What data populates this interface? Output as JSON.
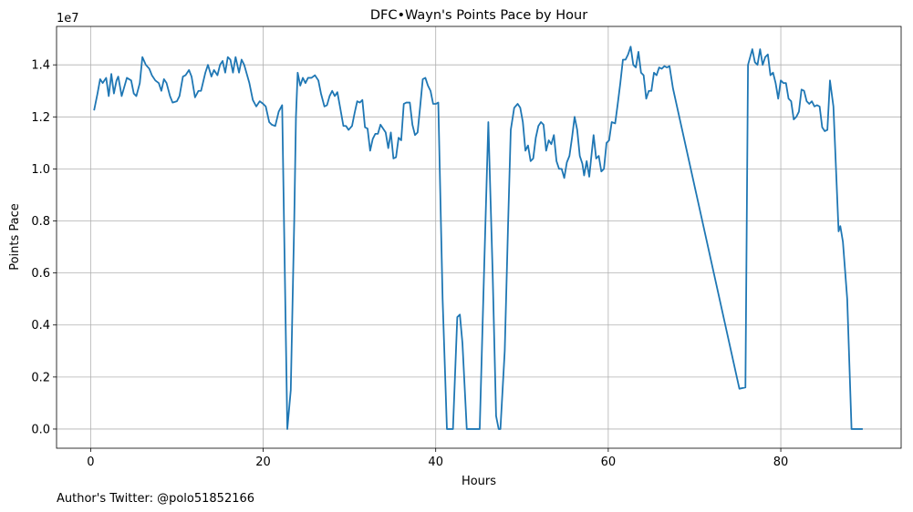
{
  "chart_data": {
    "type": "line",
    "title": "DFC•Wayn's Points Pace by Hour",
    "xlabel": "Hours",
    "ylabel": "Points Pace",
    "y_offset_label": "1e7",
    "footer": "Author's Twitter: @polo51852166",
    "color": "#1f77b4",
    "grid": true,
    "xlim": [
      -3.95,
      93.95
    ],
    "ylim": [
      -0.0737,
      1.5477
    ],
    "xticks": [
      0,
      20,
      40,
      60,
      80
    ],
    "yticks": [
      {
        "value": 0,
        "label": "0.0"
      },
      0.2,
      0.4,
      0.6,
      0.8,
      {
        "value": 1,
        "label": "1.0"
      },
      1.2,
      1.4
    ],
    "x": [
      0.4,
      0.8,
      1.1,
      1.4,
      1.8,
      2.1,
      2.4,
      2.7,
      3.0,
      3.2,
      3.6,
      4.2,
      4.7,
      5.0,
      5.3,
      5.7,
      6.0,
      6.4,
      6.8,
      7.1,
      7.5,
      7.9,
      8.2,
      8.5,
      8.8,
      9.2,
      9.5,
      10.0,
      10.3,
      10.7,
      11.0,
      11.4,
      11.7,
      12.1,
      12.5,
      12.8,
      13.3,
      13.6,
      14.0,
      14.3,
      14.7,
      15.0,
      15.3,
      15.6,
      15.9,
      16.2,
      16.5,
      16.8,
      17.2,
      17.5,
      17.8,
      18.1,
      18.4,
      18.8,
      19.2,
      19.6,
      20.0,
      20.3,
      20.7,
      21.0,
      21.4,
      21.8,
      22.2,
      22.8,
      23.2,
      23.6,
      23.8,
      24.0,
      24.3,
      24.6,
      24.9,
      25.2,
      25.6,
      26.0,
      26.4,
      26.7,
      27.1,
      27.4,
      27.7,
      28.0,
      28.3,
      28.6,
      28.9,
      29.3,
      29.6,
      29.9,
      30.3,
      30.6,
      30.9,
      31.2,
      31.5,
      31.8,
      32.1,
      32.4,
      32.7,
      33.0,
      33.3,
      33.6,
      33.9,
      34.2,
      34.5,
      34.8,
      35.1,
      35.4,
      35.7,
      36.0,
      36.3,
      36.6,
      37.0,
      37.3,
      37.6,
      37.9,
      38.2,
      38.5,
      38.8,
      39.1,
      39.4,
      39.7,
      40.0,
      40.3,
      40.8,
      41.3,
      42.0,
      42.5,
      42.8,
      43.1,
      43.6,
      44.0,
      45.1,
      45.6,
      46.1,
      46.6,
      47.0,
      47.3,
      47.5,
      48.0,
      48.4,
      48.7,
      49.1,
      49.5,
      49.8,
      50.1,
      50.4,
      50.7,
      51.0,
      51.3,
      51.6,
      51.9,
      52.2,
      52.5,
      52.8,
      53.1,
      53.4,
      53.7,
      54.0,
      54.3,
      54.6,
      54.9,
      55.2,
      55.5,
      55.8,
      56.1,
      56.4,
      56.7,
      57.0,
      57.2,
      57.5,
      57.8,
      58.0,
      58.3,
      58.6,
      58.9,
      59.2,
      59.5,
      59.8,
      60.1,
      60.4,
      60.8,
      61.1,
      61.4,
      61.7,
      62.0,
      62.3,
      62.6,
      62.9,
      63.2,
      63.5,
      63.8,
      64.1,
      64.4,
      64.7,
      65.0,
      65.3,
      65.6,
      65.9,
      66.2,
      66.5,
      66.8,
      67.1,
      67.5,
      75.2,
      75.9,
      76.2,
      76.7,
      77.0,
      77.3,
      77.6,
      77.9,
      78.2,
      78.5,
      78.8,
      79.1,
      79.4,
      79.7,
      80.0,
      80.3,
      80.6,
      80.9,
      81.2,
      81.5,
      81.8,
      82.1,
      82.4,
      82.7,
      83.0,
      83.3,
      83.6,
      83.9,
      84.2,
      84.5,
      84.8,
      85.1,
      85.4,
      85.7,
      86.1,
      86.4,
      86.7,
      86.9,
      87.2,
      87.7,
      88.2,
      88.6,
      89.0,
      89.5
    ],
    "values": [
      1.225,
      1.29,
      1.345,
      1.33,
      1.35,
      1.28,
      1.365,
      1.29,
      1.34,
      1.355,
      1.28,
      1.35,
      1.34,
      1.29,
      1.28,
      1.33,
      1.43,
      1.4,
      1.385,
      1.36,
      1.34,
      1.33,
      1.3,
      1.345,
      1.33,
      1.28,
      1.255,
      1.26,
      1.28,
      1.355,
      1.36,
      1.38,
      1.355,
      1.275,
      1.3,
      1.3,
      1.37,
      1.4,
      1.355,
      1.38,
      1.36,
      1.4,
      1.415,
      1.37,
      1.43,
      1.42,
      1.37,
      1.43,
      1.37,
      1.42,
      1.4,
      1.365,
      1.33,
      1.265,
      1.24,
      1.26,
      1.25,
      1.24,
      1.18,
      1.17,
      1.165,
      1.22,
      1.245,
      0.0,
      0.15,
      0.8,
      1.2,
      1.37,
      1.32,
      1.35,
      1.33,
      1.35,
      1.35,
      1.36,
      1.34,
      1.29,
      1.24,
      1.245,
      1.28,
      1.3,
      1.28,
      1.295,
      1.24,
      1.165,
      1.165,
      1.15,
      1.165,
      1.215,
      1.26,
      1.255,
      1.265,
      1.16,
      1.155,
      1.07,
      1.115,
      1.135,
      1.135,
      1.17,
      1.155,
      1.14,
      1.08,
      1.14,
      1.04,
      1.045,
      1.12,
      1.11,
      1.25,
      1.255,
      1.255,
      1.17,
      1.13,
      1.14,
      1.24,
      1.345,
      1.35,
      1.32,
      1.3,
      1.25,
      1.25,
      1.255,
      0.5,
      0.0,
      0.0,
      0.43,
      0.44,
      0.33,
      0.0,
      0.0,
      0.0,
      0.6,
      1.18,
      0.6,
      0.05,
      0.0,
      0.0,
      0.3,
      0.8,
      1.15,
      1.235,
      1.25,
      1.235,
      1.18,
      1.07,
      1.09,
      1.03,
      1.04,
      1.12,
      1.165,
      1.18,
      1.17,
      1.07,
      1.11,
      1.095,
      1.13,
      1.03,
      1.0,
      1.0,
      0.965,
      1.025,
      1.05,
      1.12,
      1.2,
      1.15,
      1.05,
      1.02,
      0.975,
      1.03,
      0.97,
      1.035,
      1.13,
      1.04,
      1.05,
      0.99,
      1.0,
      1.1,
      1.11,
      1.18,
      1.175,
      1.25,
      1.33,
      1.42,
      1.42,
      1.44,
      1.47,
      1.4,
      1.39,
      1.45,
      1.37,
      1.36,
      1.27,
      1.3,
      1.3,
      1.37,
      1.36,
      1.39,
      1.385,
      1.395,
      1.39,
      1.395,
      1.31,
      0.155,
      0.16,
      1.4,
      1.46,
      1.41,
      1.4,
      1.46,
      1.4,
      1.43,
      1.44,
      1.36,
      1.37,
      1.33,
      1.27,
      1.34,
      1.33,
      1.33,
      1.27,
      1.26,
      1.19,
      1.2,
      1.22,
      1.305,
      1.3,
      1.26,
      1.25,
      1.26,
      1.24,
      1.245,
      1.24,
      1.16,
      1.145,
      1.15,
      1.34,
      1.24,
      1.0,
      0.76,
      0.78,
      0.72,
      0.5,
      0.0,
      0.0,
      0.0,
      0.0
    ]
  }
}
